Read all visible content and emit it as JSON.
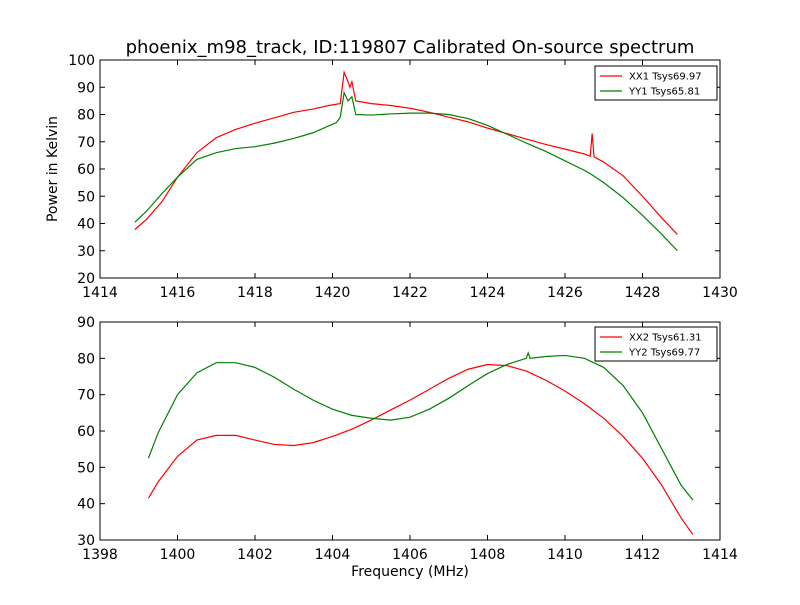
{
  "chart_data": [
    {
      "type": "line",
      "title": "phoenix_m98_track, ID:119807 Calibrated On-source spectrum",
      "xlabel": "",
      "ylabel": "Power in Kelvin",
      "xlim": [
        1414,
        1430
      ],
      "ylim": [
        20,
        100
      ],
      "xticks": [
        1414,
        1416,
        1418,
        1420,
        1422,
        1424,
        1426,
        1428,
        1430
      ],
      "yticks": [
        20,
        30,
        40,
        50,
        60,
        70,
        80,
        90,
        100
      ],
      "legend_position": "top-right",
      "series": [
        {
          "name": "XX1 Tsys69.97",
          "color": "#ff0000",
          "points": [
            [
              1414.9,
              37.8
            ],
            [
              1415.2,
              41.5
            ],
            [
              1415.6,
              48.0
            ],
            [
              1416.0,
              57.0
            ],
            [
              1416.5,
              66.0
            ],
            [
              1417.0,
              71.5
            ],
            [
              1417.5,
              74.5
            ],
            [
              1418.0,
              76.8
            ],
            [
              1418.5,
              78.8
            ],
            [
              1419.0,
              80.8
            ],
            [
              1419.5,
              82.0
            ],
            [
              1419.9,
              83.3
            ],
            [
              1420.2,
              84.0
            ],
            [
              1420.3,
              95.5
            ],
            [
              1420.4,
              92.0
            ],
            [
              1420.45,
              90.0
            ],
            [
              1420.5,
              92.0
            ],
            [
              1420.6,
              85.0
            ],
            [
              1421.0,
              84.0
            ],
            [
              1421.5,
              83.3
            ],
            [
              1422.0,
              82.3
            ],
            [
              1422.5,
              80.8
            ],
            [
              1423.0,
              79.0
            ],
            [
              1423.5,
              77.3
            ],
            [
              1424.0,
              75.0
            ],
            [
              1424.5,
              73.0
            ],
            [
              1425.0,
              71.0
            ],
            [
              1425.5,
              69.0
            ],
            [
              1426.0,
              67.3
            ],
            [
              1426.5,
              65.5
            ],
            [
              1426.65,
              64.7
            ],
            [
              1426.7,
              73.0
            ],
            [
              1426.75,
              64.5
            ],
            [
              1427.0,
              62.5
            ],
            [
              1427.5,
              57.5
            ],
            [
              1428.0,
              50.0
            ],
            [
              1428.5,
              42.0
            ],
            [
              1428.9,
              36.0
            ]
          ]
        },
        {
          "name": "YY1 Tsys65.81",
          "color": "#008000",
          "points": [
            [
              1414.9,
              40.5
            ],
            [
              1415.2,
              44.5
            ],
            [
              1415.6,
              51.0
            ],
            [
              1416.0,
              57.0
            ],
            [
              1416.5,
              63.5
            ],
            [
              1417.0,
              66.0
            ],
            [
              1417.5,
              67.5
            ],
            [
              1418.0,
              68.2
            ],
            [
              1418.5,
              69.5
            ],
            [
              1419.0,
              71.2
            ],
            [
              1419.5,
              73.3
            ],
            [
              1419.9,
              75.8
            ],
            [
              1420.1,
              77.0
            ],
            [
              1420.2,
              79.0
            ],
            [
              1420.3,
              88.0
            ],
            [
              1420.4,
              85.0
            ],
            [
              1420.5,
              86.5
            ],
            [
              1420.6,
              80.0
            ],
            [
              1421.0,
              79.8
            ],
            [
              1421.5,
              80.2
            ],
            [
              1422.0,
              80.5
            ],
            [
              1422.5,
              80.5
            ],
            [
              1423.0,
              80.0
            ],
            [
              1423.5,
              78.5
            ],
            [
              1424.0,
              76.0
            ],
            [
              1424.5,
              72.8
            ],
            [
              1425.0,
              69.5
            ],
            [
              1425.5,
              66.5
            ],
            [
              1426.0,
              63.0
            ],
            [
              1426.5,
              59.5
            ],
            [
              1426.65,
              58.3
            ],
            [
              1427.0,
              55.0
            ],
            [
              1427.5,
              49.5
            ],
            [
              1428.0,
              43.0
            ],
            [
              1428.5,
              36.0
            ],
            [
              1428.9,
              30.0
            ]
          ]
        }
      ]
    },
    {
      "type": "line",
      "title": "",
      "xlabel": "Frequency (MHz)",
      "ylabel": "",
      "xlim": [
        1398,
        1414
      ],
      "ylim": [
        30,
        90
      ],
      "xticks": [
        1398,
        1400,
        1402,
        1404,
        1406,
        1408,
        1410,
        1412,
        1414
      ],
      "yticks": [
        30,
        40,
        50,
        60,
        70,
        80,
        90
      ],
      "legend_position": "top-right",
      "series": [
        {
          "name": "XX2 Tsys61.31",
          "color": "#ff0000",
          "points": [
            [
              1399.25,
              41.5
            ],
            [
              1399.5,
              46.0
            ],
            [
              1400.0,
              53.0
            ],
            [
              1400.5,
              57.5
            ],
            [
              1401.0,
              58.8
            ],
            [
              1401.5,
              58.8
            ],
            [
              1402.0,
              57.5
            ],
            [
              1402.5,
              56.3
            ],
            [
              1403.0,
              56.0
            ],
            [
              1403.5,
              56.8
            ],
            [
              1404.0,
              58.5
            ],
            [
              1404.5,
              60.5
            ],
            [
              1405.0,
              63.0
            ],
            [
              1405.5,
              65.8
            ],
            [
              1406.0,
              68.5
            ],
            [
              1406.5,
              71.5
            ],
            [
              1407.0,
              74.5
            ],
            [
              1407.5,
              77.0
            ],
            [
              1408.0,
              78.3
            ],
            [
              1408.5,
              78.0
            ],
            [
              1409.0,
              76.5
            ],
            [
              1409.5,
              74.0
            ],
            [
              1410.0,
              71.0
            ],
            [
              1410.5,
              67.5
            ],
            [
              1411.0,
              63.5
            ],
            [
              1411.5,
              58.5
            ],
            [
              1412.0,
              52.5
            ],
            [
              1412.5,
              45.0
            ],
            [
              1413.0,
              36.0
            ],
            [
              1413.3,
              31.5
            ]
          ]
        },
        {
          "name": "YY2 Tsys69.77",
          "color": "#008000",
          "points": [
            [
              1399.25,
              52.5
            ],
            [
              1399.5,
              59.5
            ],
            [
              1400.0,
              70.0
            ],
            [
              1400.5,
              76.0
            ],
            [
              1401.0,
              78.8
            ],
            [
              1401.5,
              78.8
            ],
            [
              1402.0,
              77.5
            ],
            [
              1402.5,
              74.8
            ],
            [
              1403.0,
              71.5
            ],
            [
              1403.5,
              68.5
            ],
            [
              1404.0,
              66.0
            ],
            [
              1404.5,
              64.3
            ],
            [
              1405.0,
              63.5
            ],
            [
              1405.5,
              63.0
            ],
            [
              1406.0,
              63.8
            ],
            [
              1406.5,
              66.0
            ],
            [
              1407.0,
              69.0
            ],
            [
              1407.5,
              72.5
            ],
            [
              1408.0,
              75.8
            ],
            [
              1408.5,
              78.3
            ],
            [
              1409.0,
              80.0
            ],
            [
              1409.05,
              81.5
            ],
            [
              1409.1,
              80.0
            ],
            [
              1409.5,
              80.5
            ],
            [
              1410.0,
              80.8
            ],
            [
              1410.5,
              80.0
            ],
            [
              1411.0,
              77.5
            ],
            [
              1411.5,
              72.5
            ],
            [
              1412.0,
              65.0
            ],
            [
              1412.5,
              55.0
            ],
            [
              1413.0,
              45.0
            ],
            [
              1413.3,
              41.0
            ]
          ]
        }
      ]
    }
  ]
}
